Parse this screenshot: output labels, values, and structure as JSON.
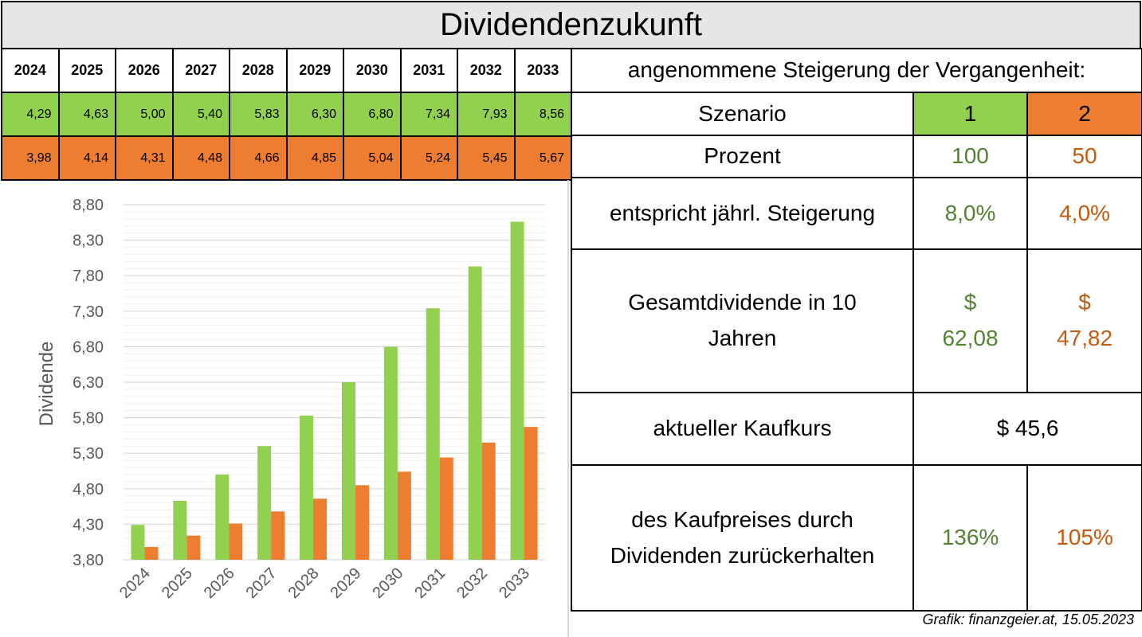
{
  "title": "Dividendenzukunft",
  "years_table": {
    "years": [
      "2024",
      "2025",
      "2026",
      "2027",
      "2028",
      "2029",
      "2030",
      "2031",
      "2032",
      "2033"
    ],
    "scenario1": [
      "4,29",
      "4,63",
      "5,00",
      "5,40",
      "5,83",
      "6,30",
      "6,80",
      "7,34",
      "7,93",
      "8,56"
    ],
    "scenario2": [
      "3,98",
      "4,14",
      "4,31",
      "4,48",
      "4,66",
      "4,85",
      "5,04",
      "5,24",
      "5,45",
      "5,67"
    ]
  },
  "info": {
    "header": "angenommene Steigerung der Vergangenheit:",
    "szenario_label": "Szenario",
    "szenario_1": "1",
    "szenario_2": "2",
    "prozent_label": "Prozent",
    "prozent_1": "100",
    "prozent_2": "50",
    "steigerung_label": "entspricht jährl. Steigerung",
    "steigerung_1": "8,0%",
    "steigerung_2": "4,0%",
    "gesamt_label_line1": "Gesamtdividende in 10",
    "gesamt_label_line2": "Jahren",
    "gesamt_1_currency": "$",
    "gesamt_1_value": "62,08",
    "gesamt_2_currency": "$",
    "gesamt_2_value": "47,82",
    "kaufkurs_label": "aktueller Kaufkurs",
    "kaufkurs_value": "$ 45,6",
    "zurueck_label_line1": "des Kaufpreises durch",
    "zurueck_label_line2": "Dividenden zurückerhalten",
    "zurueck_1": "136%",
    "zurueck_2": "105%"
  },
  "credit": "Grafik: finanzgeier.at, 15.05.2023",
  "colors": {
    "scenario1": "#92d050",
    "scenario2": "#ed7d31",
    "scenario1_text": "#548235",
    "scenario2_text": "#c55a11",
    "title_bg": "#e7e6e6"
  },
  "chart_data": {
    "type": "bar",
    "categories": [
      "2024",
      "2025",
      "2026",
      "2027",
      "2028",
      "2029",
      "2030",
      "2031",
      "2032",
      "2033"
    ],
    "series": [
      {
        "values": [
          4.29,
          4.63,
          5.0,
          5.4,
          5.83,
          6.3,
          6.8,
          7.34,
          7.93,
          8.56
        ]
      },
      {
        "values": [
          3.98,
          4.14,
          4.31,
          4.48,
          4.66,
          4.85,
          5.04,
          5.24,
          5.45,
          5.67
        ]
      }
    ],
    "ylabel": "Dividende",
    "xlabel": "",
    "ylim": [
      3.8,
      8.8
    ],
    "yticks": [
      "3,80",
      "4,30",
      "4,80",
      "5,30",
      "5,80",
      "6,30",
      "6,80",
      "7,30",
      "7,80",
      "8,30",
      "8,80"
    ],
    "grid": true,
    "legend": "none"
  }
}
